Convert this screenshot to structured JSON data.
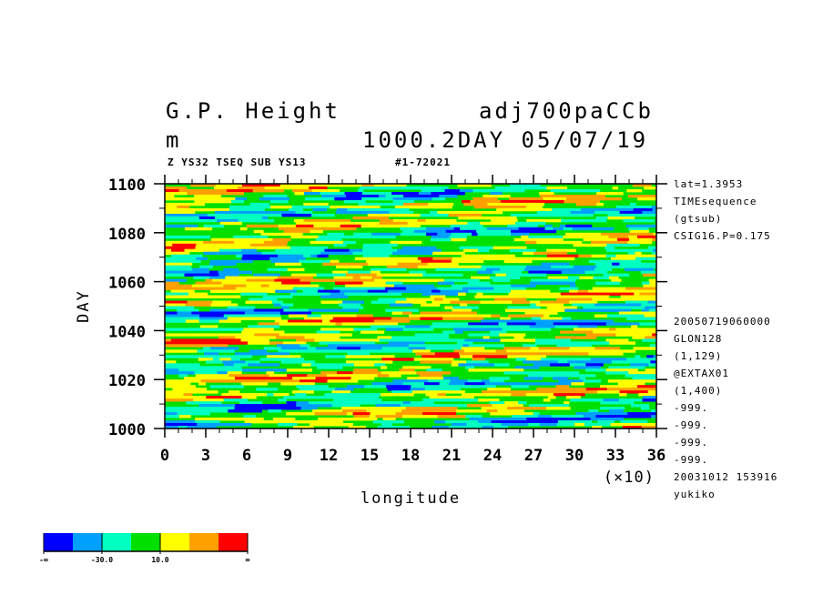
{
  "header": {
    "title_left": "G.P. Height",
    "title_right": "adj700paCCb",
    "unit": "m",
    "subtitle_right": "1000.2DAY 05/07/19",
    "info_left": "Z YS32 TSEQ SUB YS13",
    "info_right": "#1-72021"
  },
  "side_info_top": [
    "lat=1.3953",
    "TIMEsequence",
    "(gtsub)",
    "CSIG16.P=0.175"
  ],
  "side_info_bottom": [
    "20050719060000",
    "GLON128",
    "(1,129)",
    "@EXTAX01",
    "(1,400)",
    "-999.",
    "-999.",
    "-999.",
    "-999.",
    "20031012 153916",
    "yukiko"
  ],
  "chart_data": {
    "type": "heatmap",
    "title": "G.P. Height",
    "xlabel": "longitude",
    "ylabel": "DAY",
    "x_scale_label": "(×10)",
    "xlim": [
      0,
      36
    ],
    "ylim": [
      1000,
      1100
    ],
    "x_ticks": [
      "0",
      "3",
      "6",
      "9",
      "12",
      "15",
      "18",
      "21",
      "24",
      "27",
      "30",
      "33",
      "36"
    ],
    "y_ticks": [
      "1000",
      "1020",
      "1040",
      "1060",
      "1080",
      "1100"
    ],
    "colorbar": {
      "colors": [
        "#0000ff",
        "#00a0ff",
        "#00ffc0",
        "#00e000",
        "#ffff00",
        "#ffa000",
        "#ff0000"
      ],
      "labels": [
        "-∞",
        "-30.0",
        "10.0",
        "∞"
      ]
    }
  }
}
